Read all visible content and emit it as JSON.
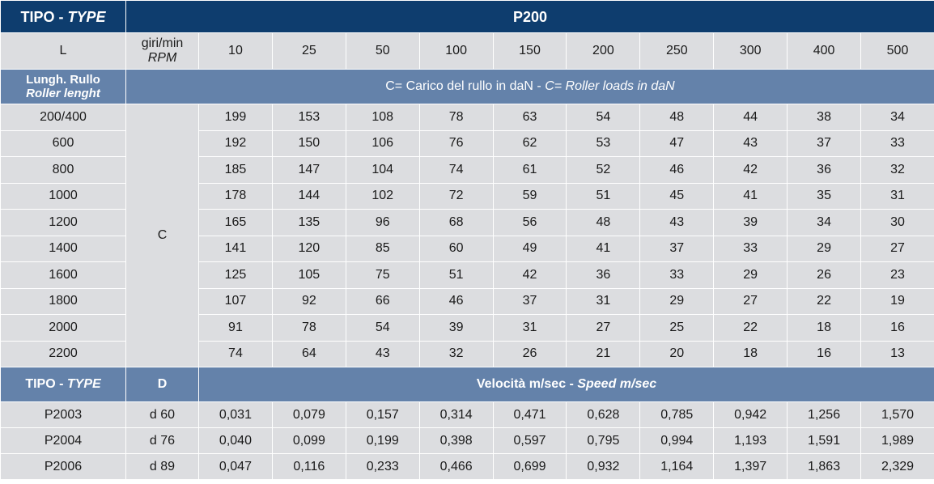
{
  "header": {
    "type_prefix": "TIPO - ",
    "type_italic": "TYPE",
    "model": "P200"
  },
  "columns": {
    "l_label": "L",
    "rpm_label": "giri/min",
    "rpm_italic": "RPM",
    "rpm_values": [
      "10",
      "25",
      "50",
      "100",
      "150",
      "200",
      "250",
      "300",
      "400",
      "500"
    ]
  },
  "load_band": {
    "length_label": "Lungh. Rullo",
    "length_italic": "Roller lenght",
    "caption_it": "C= Carico del rullo in daN - ",
    "caption_en": "C= Roller loads in daN"
  },
  "load_table": {
    "c_label": "C",
    "rows": [
      {
        "length": "200/400",
        "values": [
          "199",
          "153",
          "108",
          "78",
          "63",
          "54",
          "48",
          "44",
          "38",
          "34"
        ]
      },
      {
        "length": "600",
        "values": [
          "192",
          "150",
          "106",
          "76",
          "62",
          "53",
          "47",
          "43",
          "37",
          "33"
        ]
      },
      {
        "length": "800",
        "values": [
          "185",
          "147",
          "104",
          "74",
          "61",
          "52",
          "46",
          "42",
          "36",
          "32"
        ]
      },
      {
        "length": "1000",
        "values": [
          "178",
          "144",
          "102",
          "72",
          "59",
          "51",
          "45",
          "41",
          "35",
          "31"
        ]
      },
      {
        "length": "1200",
        "values": [
          "165",
          "135",
          "96",
          "68",
          "56",
          "48",
          "43",
          "39",
          "34",
          "30"
        ]
      },
      {
        "length": "1400",
        "values": [
          "141",
          "120",
          "85",
          "60",
          "49",
          "41",
          "37",
          "33",
          "29",
          "27"
        ]
      },
      {
        "length": "1600",
        "values": [
          "125",
          "105",
          "75",
          "51",
          "42",
          "36",
          "33",
          "29",
          "26",
          "23"
        ]
      },
      {
        "length": "1800",
        "values": [
          "107",
          "92",
          "66",
          "46",
          "37",
          "31",
          "29",
          "27",
          "22",
          "19"
        ]
      },
      {
        "length": "2000",
        "values": [
          "91",
          "78",
          "54",
          "39",
          "31",
          "27",
          "25",
          "22",
          "18",
          "16"
        ]
      },
      {
        "length": "2200",
        "values": [
          "74",
          "64",
          "43",
          "32",
          "26",
          "21",
          "20",
          "18",
          "16",
          "13"
        ]
      }
    ]
  },
  "speed_band": {
    "type_prefix": "TIPO - ",
    "type_italic": "TYPE",
    "d_label": "D",
    "caption_it": "Velocità m/sec - ",
    "caption_en": "Speed m/sec"
  },
  "speed_table": {
    "rows": [
      {
        "type": "P2003",
        "d": "d 60",
        "values": [
          "0,031",
          "0,079",
          "0,157",
          "0,314",
          "0,471",
          "0,628",
          "0,785",
          "0,942",
          "1,256",
          "1,570"
        ]
      },
      {
        "type": "P2004",
        "d": "d 76",
        "values": [
          "0,040",
          "0,099",
          "0,199",
          "0,398",
          "0,597",
          "0,795",
          "0,994",
          "1,193",
          "1,591",
          "1,989"
        ]
      },
      {
        "type": "P2006",
        "d": "d 89",
        "values": [
          "0,047",
          "0,116",
          "0,233",
          "0,466",
          "0,699",
          "0,932",
          "1,164",
          "1,397",
          "1,863",
          "2,329"
        ]
      }
    ]
  }
}
